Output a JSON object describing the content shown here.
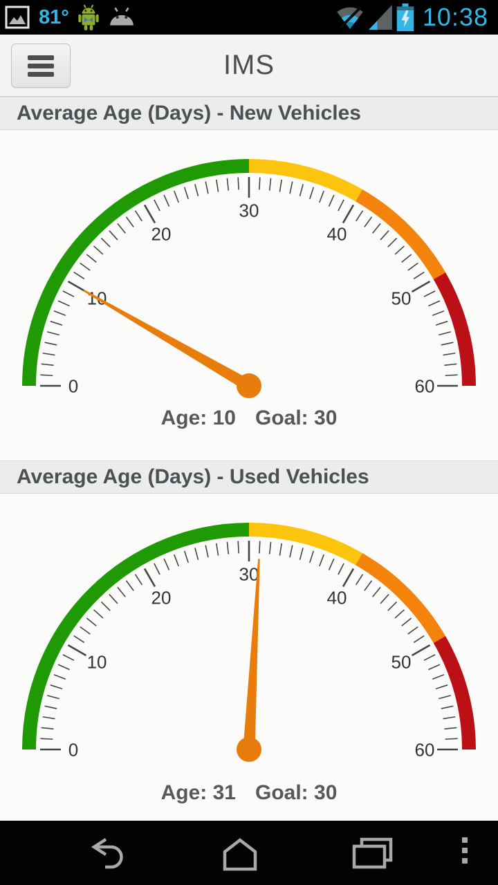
{
  "status_bar": {
    "temperature": "81°",
    "time": "10:38",
    "accent_color": "#33b5e5",
    "icon_gray": "#5d6265",
    "icons": [
      "gallery-icon",
      "android-notification-icon",
      "android-head-notification-icon",
      "wifi-icon",
      "cell-signal-icon",
      "battery-charging-icon"
    ]
  },
  "header": {
    "title": "IMS",
    "menu_button": "hamburger-menu"
  },
  "chart_data": [
    {
      "type": "gauge",
      "title": "Average Age (Days) - New Vehicles",
      "min": 0,
      "max": 60,
      "value": 10,
      "goal": 30,
      "value_label": "Age: 10",
      "goal_label": "Goal: 30",
      "minor_tick_step": 1,
      "major_tick_step": 10,
      "tick_labels": [
        "0",
        "10",
        "20",
        "30",
        "40",
        "50",
        "60"
      ],
      "zones": [
        {
          "from": 0,
          "to": 30,
          "color": "#1f9a05"
        },
        {
          "from": 30,
          "to": 40,
          "color": "#fdc40d"
        },
        {
          "from": 40,
          "to": 50,
          "color": "#f4830b"
        },
        {
          "from": 50,
          "to": 60,
          "color": "#bb1016"
        }
      ],
      "needle_color": "#e87d0e",
      "tick_color": "#454545",
      "label_color": "#333333"
    },
    {
      "type": "gauge",
      "title": "Average Age (Days) - Used Vehicles",
      "min": 0,
      "max": 60,
      "value": 31,
      "goal": 30,
      "value_label": "Age: 31",
      "goal_label": "Goal: 30",
      "minor_tick_step": 1,
      "major_tick_step": 10,
      "tick_labels": [
        "0",
        "10",
        "20",
        "30",
        "40",
        "50",
        "60"
      ],
      "zones": [
        {
          "from": 0,
          "to": 30,
          "color": "#1f9a05"
        },
        {
          "from": 30,
          "to": 40,
          "color": "#fdc40d"
        },
        {
          "from": 40,
          "to": 50,
          "color": "#f4830b"
        },
        {
          "from": 50,
          "to": 60,
          "color": "#bb1016"
        }
      ],
      "needle_color": "#e87d0e",
      "tick_color": "#454545",
      "label_color": "#333333"
    }
  ],
  "nav_bar": {
    "icons": [
      "back-icon",
      "home-icon",
      "recents-icon",
      "overflow-menu-icon"
    ],
    "icon_color": "#a9a9a9"
  }
}
